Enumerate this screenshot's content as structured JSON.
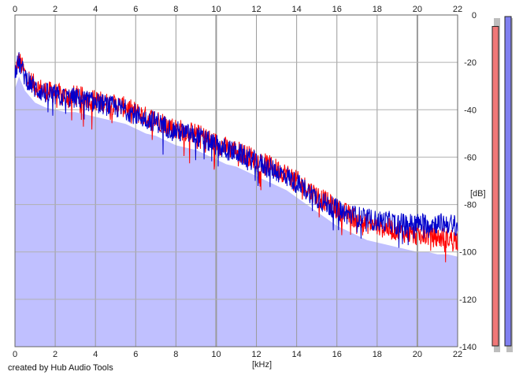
{
  "credit": "created by Hub Audio Tools",
  "chart_data": {
    "type": "line",
    "xlabel": "[kHz]",
    "ylabel": "[dB]",
    "xlim": [
      0,
      22
    ],
    "ylim": [
      -140,
      0
    ],
    "x_ticks": [
      0,
      2,
      4,
      6,
      8,
      10,
      12,
      14,
      16,
      18,
      20,
      22
    ],
    "y_ticks": [
      0,
      -20,
      -40,
      -60,
      -80,
      -100,
      -120,
      -140
    ],
    "y_tick_labels": [
      "0",
      "-20",
      "-40",
      "-60",
      "-80",
      "-100",
      "-120",
      "-140"
    ],
    "grid": true,
    "fill_color": "#c0c0ff",
    "series": [
      {
        "color": "#ff0000",
        "x": [
          0,
          0.2,
          0.5,
          1,
          1.5,
          2,
          2.5,
          3,
          3.5,
          4,
          4.5,
          5,
          5.5,
          6,
          6.5,
          7,
          7.5,
          8,
          8.5,
          9,
          9.5,
          10,
          10.5,
          11,
          11.5,
          12,
          12.5,
          13,
          13.5,
          14,
          14.5,
          15,
          15.5,
          16,
          16.5,
          17,
          17.5,
          18,
          18.5,
          19,
          19.5,
          20,
          20.5,
          21,
          21.5,
          22
        ],
        "values": [
          -24,
          -19,
          -25,
          -30,
          -32,
          -33,
          -34,
          -34,
          -35,
          -36,
          -37,
          -38,
          -39,
          -41,
          -43,
          -44,
          -46,
          -48,
          -49,
          -50,
          -52,
          -54,
          -56,
          -57,
          -59,
          -61,
          -63,
          -65,
          -67,
          -70,
          -73,
          -76,
          -79,
          -82,
          -84,
          -86,
          -88,
          -89,
          -90,
          -91,
          -92,
          -93,
          -93,
          -94,
          -94,
          -95
        ]
      },
      {
        "color": "#0000cc",
        "x": [
          0,
          0.2,
          0.5,
          1,
          1.5,
          2,
          2.5,
          3,
          3.5,
          4,
          4.5,
          5,
          5.5,
          6,
          6.5,
          7,
          7.5,
          8,
          8.5,
          9,
          9.5,
          10,
          10.5,
          11,
          11.5,
          12,
          12.5,
          13,
          13.5,
          14,
          14.5,
          15,
          15.5,
          16,
          16.5,
          17,
          17.5,
          18,
          18.5,
          19,
          19.5,
          20,
          20.5,
          21,
          21.5,
          22
        ],
        "values": [
          -23,
          -20,
          -26,
          -31,
          -33,
          -34,
          -35,
          -35,
          -36,
          -37,
          -38,
          -39,
          -40,
          -42,
          -44,
          -45,
          -47,
          -49,
          -50,
          -51,
          -53,
          -55,
          -57,
          -58,
          -60,
          -62,
          -64,
          -66,
          -68,
          -71,
          -74,
          -77,
          -80,
          -82,
          -84,
          -85,
          -86,
          -87,
          -87,
          -88,
          -88,
          -88,
          -88,
          -88,
          -88,
          -89
        ]
      }
    ],
    "level_meters": [
      {
        "color": "#f07878",
        "level": 0.97
      },
      {
        "color": "#8080f0",
        "level": 1.0
      }
    ]
  }
}
